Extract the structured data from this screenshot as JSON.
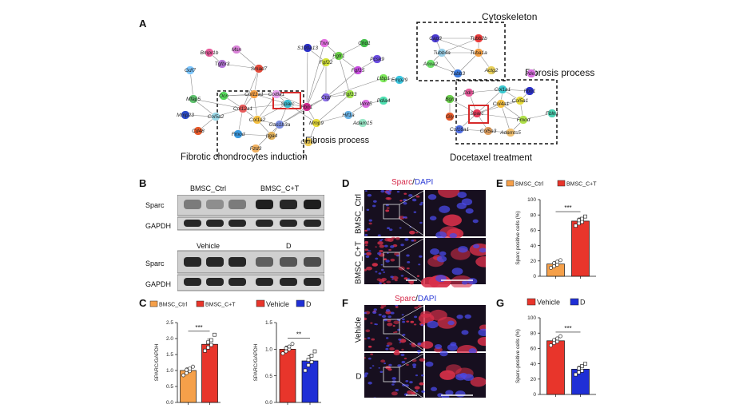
{
  "panels": {
    "A": {
      "label": "A",
      "left_network": {
        "caption": "Fibrotic chondrocytes induction",
        "box_label": "Fibrosis process",
        "nodes": [
          {
            "name": "Bmpr1b",
            "color": "#e85b9c"
          },
          {
            "name": "Msn",
            "color": "#d982d8"
          },
          {
            "name": "Tgfbr3",
            "color": "#b576d9"
          },
          {
            "name": "Gdf7",
            "color": "#7cc6ff"
          },
          {
            "name": "Smad7",
            "color": "#e34a3a"
          },
          {
            "name": "S100a13",
            "color": "#2a2fc8"
          },
          {
            "name": "Tnni",
            "color": "#e36de0"
          },
          {
            "name": "Chd1",
            "color": "#44c04a"
          },
          {
            "name": "Fgf22",
            "color": "#d3e336"
          },
          {
            "name": "Fgfr1",
            "color": "#6dd34a"
          },
          {
            "name": "Pcsk9",
            "color": "#6a4ce0"
          },
          {
            "name": "Fgf15",
            "color": "#c84ce0"
          },
          {
            "name": "Ltbp1",
            "color": "#7de85a"
          },
          {
            "name": "Emp29",
            "color": "#3ac8e3"
          },
          {
            "name": "Ocn",
            "color": "#55d85a"
          },
          {
            "name": "Col11a1",
            "color": "#f5a044"
          },
          {
            "name": "Col8a1",
            "color": "#e8a3f0"
          },
          {
            "name": "Mfap5",
            "color": "#5fc26e"
          },
          {
            "name": "Col12a1",
            "color": "#e85b5b"
          },
          {
            "name": "Fbn1",
            "color": "#cc2a8a"
          },
          {
            "name": "Ctgf",
            "color": "#8a6de8"
          },
          {
            "name": "Fgf13",
            "color": "#a2e34a"
          },
          {
            "name": "Mmp23",
            "color": "#2a4ac8"
          },
          {
            "name": "Col5a2",
            "color": "#9ad9e8"
          },
          {
            "name": "Col1a2",
            "color": "#f5c042"
          },
          {
            "name": "Sparc",
            "color": "#3cbad0"
          },
          {
            "name": "Gas1b3a",
            "color": "#7a8de0"
          },
          {
            "name": "Mmp9",
            "color": "#e8dc3a"
          },
          {
            "name": "Hif1a",
            "color": "#6ab4e8"
          },
          {
            "name": "Wnt5",
            "color": "#d96de0"
          },
          {
            "name": "Pdia4",
            "color": "#4ee0b0"
          },
          {
            "name": "Adam15",
            "color": "#9ae8c8"
          },
          {
            "name": "Cd48",
            "color": "#e85a2a"
          },
          {
            "name": "Fmod",
            "color": "#3a9ae0"
          },
          {
            "name": "Itga4",
            "color": "#e0b05a"
          },
          {
            "name": "Cthrc1",
            "color": "#f5d25a"
          },
          {
            "name": "Fzd3",
            "color": "#f0b060"
          }
        ]
      },
      "right_network": {
        "cytoskeleton_label": "Cytoskeleton",
        "fibrosis_label": "Fibrosis process",
        "caption": "Docetaxel treatment",
        "nodes": [
          {
            "name": "Tubb2b",
            "color": "#e83a3a"
          },
          {
            "name": "Cap3",
            "color": "#4a3ad0"
          },
          {
            "name": "Tubb4a",
            "color": "#9ad0e8"
          },
          {
            "name": "Tuba1a",
            "color": "#f5a044"
          },
          {
            "name": "Anxa2",
            "color": "#6de06a"
          },
          {
            "name": "Tubb3",
            "color": "#3a7ae0"
          },
          {
            "name": "Actg2",
            "color": "#e8d05a"
          },
          {
            "name": "Pde3",
            "color": "#d96de0"
          },
          {
            "name": "Ddr1",
            "color": "#e85b9c"
          },
          {
            "name": "Col1a1",
            "color": "#3ac8d0"
          },
          {
            "name": "Fbn1",
            "color": "#2a2fc8"
          },
          {
            "name": "Bgn",
            "color": "#6ad04a"
          },
          {
            "name": "Col5a1",
            "color": "#e8dc3a"
          },
          {
            "name": "Sparc",
            "color": "#e83a5a"
          },
          {
            "name": "Col4a1",
            "color": "#f5c042"
          },
          {
            "name": "Fmod",
            "color": "#b0e04a"
          },
          {
            "name": "Fbln1",
            "color": "#4ad0b0"
          },
          {
            "name": "Gly",
            "color": "#e85a2a"
          },
          {
            "name": "Col16a1",
            "color": "#4a6ae0"
          },
          {
            "name": "Col5a3",
            "color": "#e0a060"
          },
          {
            "name": "Adamts5",
            "color": "#f0c070"
          }
        ]
      }
    },
    "B": {
      "label": "B",
      "group1": "BMSC_Ctrl",
      "group2": "BMSC_C+T",
      "group3": "Vehicle",
      "group4": "D",
      "row1": "Sparc",
      "row2": "GAPDH",
      "row3": "Sparc",
      "row4": "GAPDH"
    },
    "C": {
      "label": "C",
      "legend_left": [
        "BMSC_Ctrl",
        "BMSC_C+T"
      ],
      "legend_right": [
        "Vehicle",
        "D"
      ],
      "colors": {
        "ctrl": "#f5a04a",
        "ct": "#e8352b",
        "vehicle": "#e8352b",
        "d": "#1f2fd6"
      }
    },
    "D": {
      "label": "D",
      "title_marker": "Sparc",
      "title_sep": "/",
      "title_dapi": "DAPI",
      "row1": "BMSC_Ctrl",
      "row2": "BMSC_C+T"
    },
    "E": {
      "label": "E"
    },
    "F": {
      "label": "F",
      "title_marker": "Sparc",
      "title_sep": "/",
      "title_dapi": "DAPI",
      "row1": "Vehicle",
      "row2": "D"
    },
    "G": {
      "label": "G"
    }
  },
  "chart_data": [
    {
      "panel": "C-left",
      "type": "bar",
      "categories": [
        "BMSC_Ctrl",
        "BMSC_C+T"
      ],
      "values": [
        1.0,
        1.82
      ],
      "errors": [
        0.08,
        0.16
      ],
      "points": [
        [
          0.85,
          0.92,
          0.98,
          1.02,
          1.06,
          1.12
        ],
        [
          1.62,
          1.72,
          1.8,
          1.88,
          1.95,
          2.12
        ]
      ],
      "ylabel": "SPARC/GAPDH",
      "ylim": [
        0,
        2.5
      ],
      "yticks": [
        "0.0",
        "0.5",
        "1.0",
        "1.5",
        "2.0",
        "2.5"
      ],
      "significance": "***",
      "colors": [
        "#f5a04a",
        "#e8352b"
      ]
    },
    {
      "panel": "C-right",
      "type": "bar",
      "categories": [
        "Vehicle",
        "D"
      ],
      "values": [
        1.0,
        0.78
      ],
      "errors": [
        0.06,
        0.1
      ],
      "points": [
        [
          0.92,
          0.96,
          1.0,
          1.02,
          1.05,
          1.1
        ],
        [
          0.6,
          0.7,
          0.76,
          0.8,
          0.88,
          0.96
        ]
      ],
      "ylabel": "SPARC/GAPDH",
      "ylim": [
        0,
        1.5
      ],
      "yticks": [
        "0.0",
        "0.5",
        "1.0",
        "1.5"
      ],
      "significance": "**",
      "colors": [
        "#e8352b",
        "#1f2fd6"
      ]
    },
    {
      "panel": "E",
      "type": "bar",
      "categories": [
        "BMSC_Ctrl",
        "BMSC_C+T"
      ],
      "values": [
        16,
        72
      ],
      "errors": [
        3,
        4
      ],
      "points": [
        [
          11,
          13,
          15,
          17,
          19,
          21
        ],
        [
          66,
          69,
          71,
          73,
          75,
          78
        ]
      ],
      "ylabel": "Sparc positive cells (%)",
      "ylim": [
        0,
        100
      ],
      "yticks": [
        "0",
        "20",
        "40",
        "60",
        "80",
        "100"
      ],
      "significance": "***",
      "legend": [
        "BMSC_Ctrl",
        "BMSC_C+T"
      ],
      "colors": [
        "#f5a04a",
        "#e8352b"
      ]
    },
    {
      "panel": "G",
      "type": "bar",
      "categories": [
        "Vehicle",
        "D"
      ],
      "values": [
        70,
        33
      ],
      "errors": [
        3,
        4
      ],
      "points": [
        [
          64,
          67,
          69,
          71,
          73,
          76
        ],
        [
          26,
          29,
          31,
          34,
          37,
          40
        ]
      ],
      "ylabel": "Sparc-positive cells (%)",
      "ylim": [
        0,
        100
      ],
      "yticks": [
        "0",
        "20",
        "40",
        "60",
        "80",
        "100"
      ],
      "significance": "***",
      "legend": [
        "Vehicle",
        "D"
      ],
      "colors": [
        "#e8352b",
        "#1f2fd6"
      ]
    }
  ]
}
